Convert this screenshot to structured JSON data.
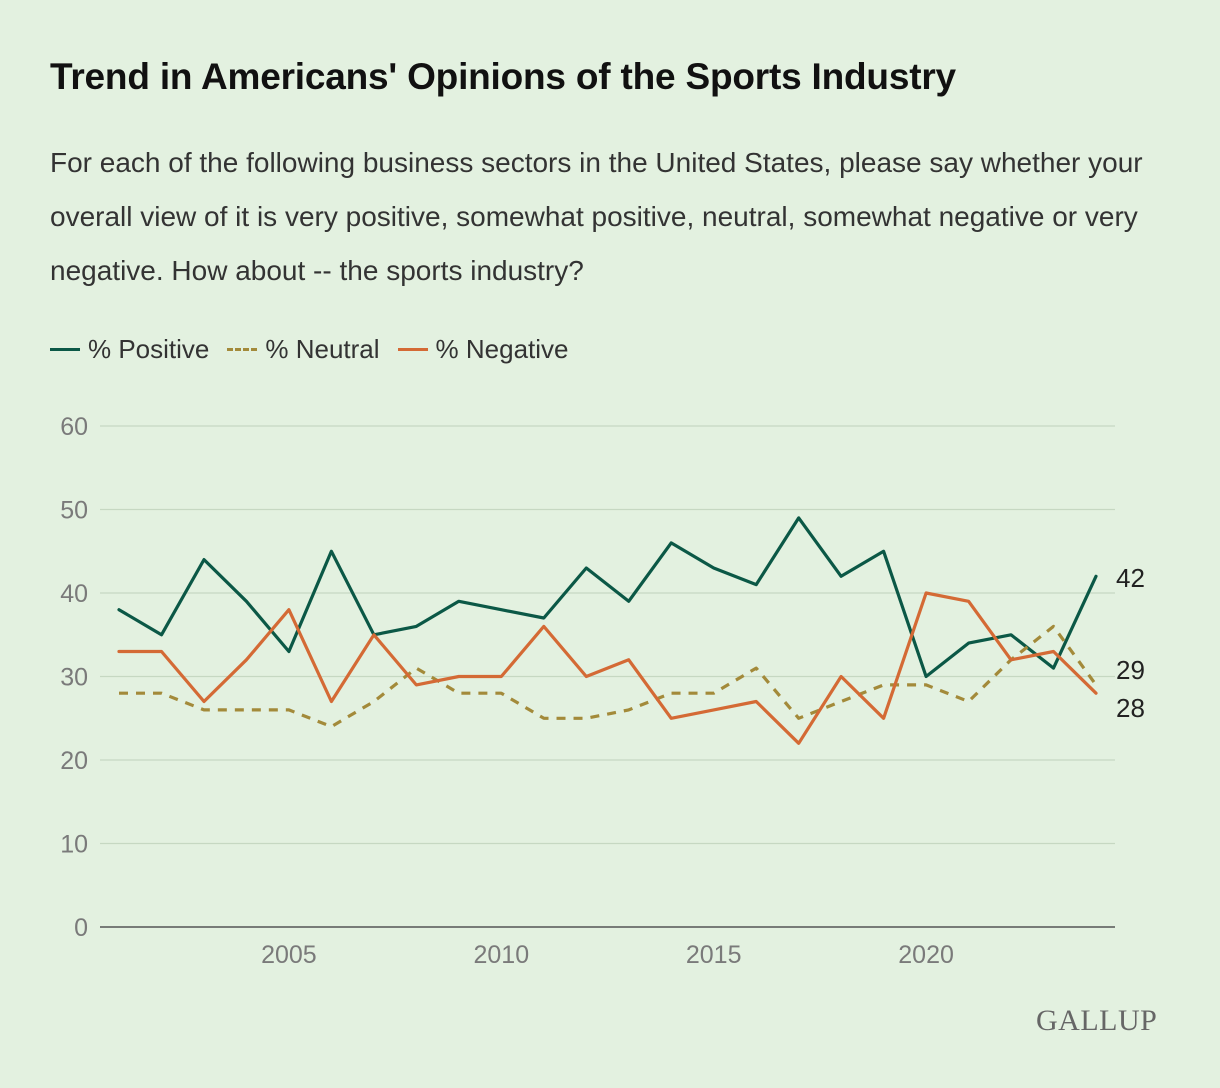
{
  "title": "Trend in Americans' Opinions of the Sports Industry",
  "subtitle": "For each of the following business sectors in the United States, please say whether your overall view of it is very positive, somewhat positive, neutral, somewhat negative or very negative. How about -- the sports industry?",
  "brand": "GALLUP",
  "colors": {
    "positive": "#0b5846",
    "neutral": "#a38a3a",
    "negative": "#d46a35",
    "grid": "#c6d8c2"
  },
  "chart_data": {
    "type": "line",
    "title": "Trend in Americans' Opinions of the Sports Industry",
    "xlabel": "",
    "ylabel": "",
    "x": [
      2001,
      2002,
      2003,
      2004,
      2005,
      2006,
      2007,
      2008,
      2009,
      2010,
      2011,
      2012,
      2013,
      2014,
      2015,
      2016,
      2017,
      2018,
      2019,
      2020,
      2021,
      2022,
      2023,
      2024
    ],
    "xlim": [
      2001,
      2024
    ],
    "ylim": [
      0,
      60
    ],
    "y_ticks": [
      0,
      10,
      20,
      30,
      40,
      50,
      60
    ],
    "x_ticks": [
      2005,
      2010,
      2015,
      2020
    ],
    "grid": true,
    "legend_position": "top-left",
    "series": [
      {
        "name": "% Positive",
        "style": "solid",
        "color": "#0b5846",
        "values": [
          38,
          35,
          44,
          39,
          33,
          45,
          35,
          36,
          39,
          38,
          37,
          43,
          39,
          46,
          43,
          41,
          49,
          42,
          45,
          30,
          34,
          35,
          31,
          42
        ],
        "end_label": "42"
      },
      {
        "name": "% Neutral",
        "style": "dashed",
        "color": "#a38a3a",
        "values": [
          28,
          28,
          26,
          26,
          26,
          24,
          27,
          31,
          28,
          28,
          25,
          25,
          26,
          28,
          28,
          31,
          25,
          27,
          29,
          29,
          27,
          32,
          36,
          29
        ],
        "end_label": "29"
      },
      {
        "name": "% Negative",
        "style": "solid",
        "color": "#d46a35",
        "values": [
          33,
          33,
          27,
          32,
          38,
          27,
          35,
          29,
          30,
          30,
          36,
          30,
          32,
          25,
          26,
          27,
          22,
          30,
          25,
          40,
          39,
          32,
          33,
          28
        ],
        "end_label": "28"
      }
    ]
  }
}
